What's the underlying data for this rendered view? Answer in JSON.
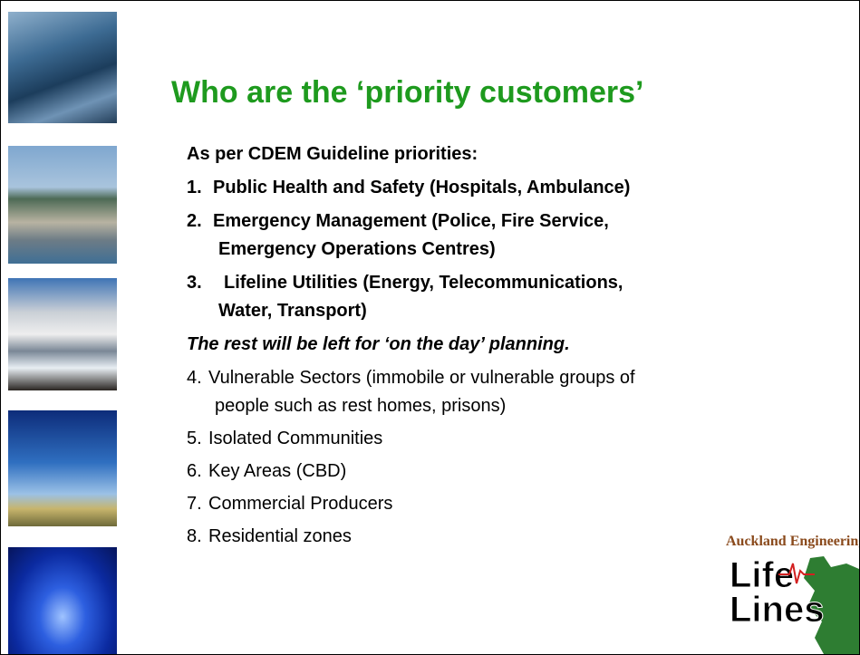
{
  "header": {
    "title": "Who are the ‘priority customers’"
  },
  "intro": "As per CDEM Guideline priorities:",
  "priorities": [
    {
      "number": "1.",
      "lines": [
        "Public Health and Safety (Hospitals, Ambulance)"
      ]
    },
    {
      "number": "2.",
      "lines": [
        "Emergency Management (Police, Fire Service,",
        "Emergency Operations Centres)"
      ]
    },
    {
      "number": "3.",
      "lines": [
        "Lifeline Utilities (Energy, Telecommunications,",
        "Water, Transport)"
      ]
    }
  ],
  "note": "The rest will be left for ‘on the day’ planning.",
  "others": [
    {
      "number": "4.",
      "lines": [
        "Vulnerable Sectors (immobile or vulnerable groups of",
        "people such as rest homes, prisons)"
      ]
    },
    {
      "number": "5.",
      "lines": [
        "Isolated Communities"
      ]
    },
    {
      "number": "6.",
      "lines": [
        "Key Areas (CBD)"
      ]
    },
    {
      "number": "7.",
      "lines": [
        "Commercial Producers"
      ]
    },
    {
      "number": "8.",
      "lines": [
        "Residential zones"
      ]
    }
  ],
  "logo": {
    "caption": "Auckland Engineering",
    "line1": "Life",
    "line2": "Lines"
  }
}
